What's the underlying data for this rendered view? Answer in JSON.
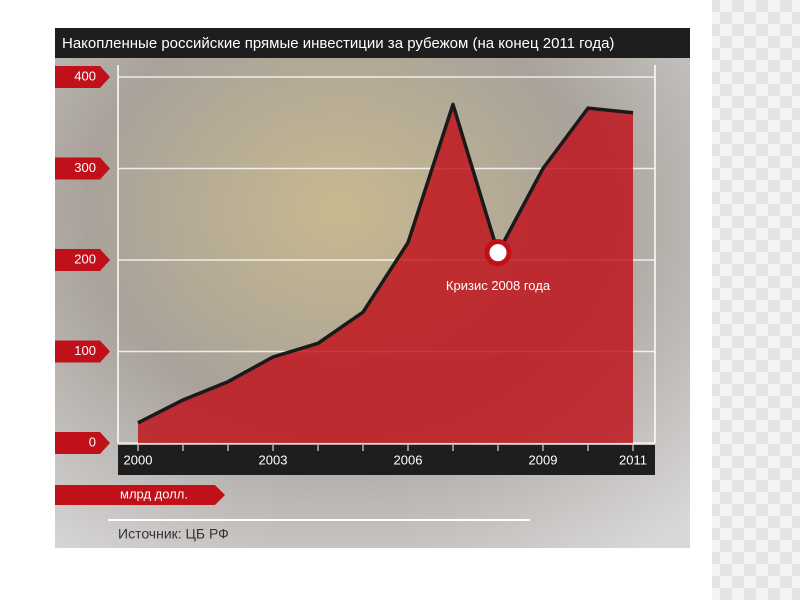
{
  "chart_data": {
    "type": "area",
    "title": "Накопленные российские прямые инвестиции за рубежом (на конец 2011 года)",
    "y_label": "млрд долл.",
    "source": "Источник: ЦБ РФ",
    "annotation": "Кризис 2008 года",
    "x": [
      2000,
      2001,
      2002,
      2003,
      2004,
      2005,
      2006,
      2007,
      2008,
      2009,
      2010,
      2011
    ],
    "values": [
      22,
      47,
      67,
      94,
      109,
      143,
      219,
      370,
      208,
      300,
      366,
      361
    ],
    "color": "#c0101a",
    "xlim": [
      2000,
      2011
    ],
    "xticks": [
      2000,
      2003,
      2006,
      2009,
      2011
    ],
    "ylim": [
      0,
      400
    ],
    "yticks": [
      0,
      100,
      200,
      300,
      400
    ],
    "grid": true
  }
}
